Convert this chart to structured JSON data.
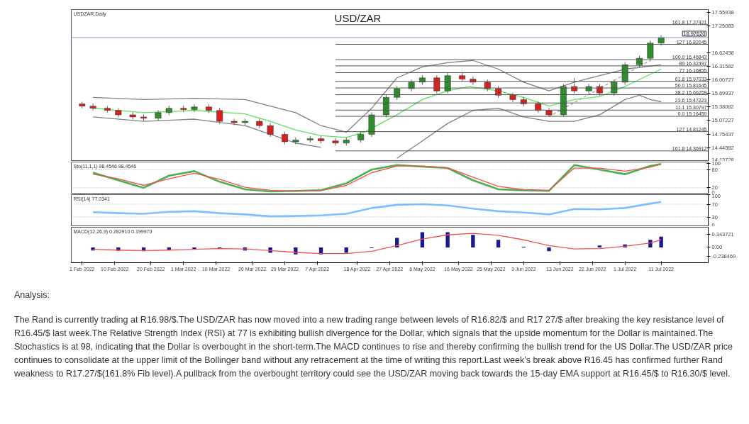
{
  "chart_data": [
    {
      "type": "candlestick",
      "title": "USD/ZAR",
      "subtitle": "USDZAR,Daily",
      "x": [
        "2022-02-01",
        "2022-02-04",
        "2022-02-08",
        "2022-02-11",
        "2022-02-15",
        "2022-02-18",
        "2022-02-22",
        "2022-02-25",
        "2022-03-01",
        "2022-03-04",
        "2022-03-08",
        "2022-03-11",
        "2022-03-15",
        "2022-03-18",
        "2022-03-22",
        "2022-03-25",
        "2022-03-29",
        "2022-04-01",
        "2022-04-05",
        "2022-04-08",
        "2022-04-12",
        "2022-04-15",
        "2022-04-19",
        "2022-04-22",
        "2022-04-26",
        "2022-04-29",
        "2022-05-03",
        "2022-05-06",
        "2022-05-10",
        "2022-05-13",
        "2022-05-17",
        "2022-05-20",
        "2022-05-24",
        "2022-05-27",
        "2022-05-31",
        "2022-06-03",
        "2022-06-07",
        "2022-06-10",
        "2022-06-14",
        "2022-06-17",
        "2022-06-21",
        "2022-06-24",
        "2022-06-28",
        "2022-07-01",
        "2022-07-05",
        "2022-07-08",
        "2022-07-11"
      ],
      "ohlc": [
        [
          15.45,
          15.5,
          15.35,
          15.4
        ],
        [
          15.4,
          15.46,
          15.3,
          15.35
        ],
        [
          15.35,
          15.4,
          15.25,
          15.3
        ],
        [
          15.3,
          15.35,
          15.14,
          15.2
        ],
        [
          15.2,
          15.26,
          15.09,
          15.15
        ],
        [
          15.15,
          15.21,
          15.06,
          15.12
        ],
        [
          15.12,
          15.31,
          15.06,
          15.25
        ],
        [
          15.25,
          15.41,
          15.19,
          15.35
        ],
        [
          15.35,
          15.41,
          15.26,
          15.32
        ],
        [
          15.32,
          15.44,
          15.26,
          15.38
        ],
        [
          15.38,
          15.44,
          15.24,
          15.3
        ],
        [
          15.3,
          15.36,
          14.99,
          15.05
        ],
        [
          15.05,
          15.11,
          14.96,
          15.02
        ],
        [
          15.02,
          15.11,
          14.96,
          15.05
        ],
        [
          15.05,
          15.11,
          14.89,
          14.95
        ],
        [
          14.95,
          15.01,
          14.69,
          14.75
        ],
        [
          14.75,
          14.81,
          14.52,
          14.58
        ],
        [
          14.58,
          14.68,
          14.52,
          14.62
        ],
        [
          14.62,
          14.71,
          14.56,
          14.65
        ],
        [
          14.65,
          14.71,
          14.54,
          14.6
        ],
        [
          14.6,
          14.66,
          14.49,
          14.55
        ],
        [
          14.55,
          14.68,
          14.49,
          14.62
        ],
        [
          14.62,
          14.81,
          14.56,
          14.75
        ],
        [
          14.75,
          15.26,
          14.69,
          15.2
        ],
        [
          15.2,
          15.66,
          15.14,
          15.6
        ],
        [
          15.6,
          15.86,
          15.54,
          15.8
        ],
        [
          15.8,
          16.01,
          15.74,
          15.95
        ],
        [
          15.95,
          16.11,
          15.89,
          16.05
        ],
        [
          16.05,
          16.11,
          15.69,
          15.75
        ],
        [
          15.75,
          16.16,
          15.69,
          16.1
        ],
        [
          16.1,
          16.16,
          15.96,
          16.02
        ],
        [
          16.02,
          16.08,
          15.89,
          15.95
        ],
        [
          15.95,
          16.01,
          15.74,
          15.8
        ],
        [
          15.8,
          15.86,
          15.59,
          15.65
        ],
        [
          15.65,
          15.71,
          15.49,
          15.55
        ],
        [
          15.55,
          15.61,
          15.39,
          15.45
        ],
        [
          15.45,
          15.51,
          15.24,
          15.3
        ],
        [
          15.3,
          15.36,
          15.16,
          15.2
        ],
        [
          15.2,
          15.91,
          15.16,
          15.85
        ],
        [
          15.85,
          16.05,
          15.69,
          15.75
        ],
        [
          15.75,
          15.91,
          15.69,
          15.85
        ],
        [
          15.85,
          15.91,
          15.64,
          15.7
        ],
        [
          15.7,
          16.01,
          15.64,
          15.95
        ],
        [
          15.95,
          16.41,
          15.89,
          16.35
        ],
        [
          16.35,
          16.56,
          16.29,
          16.5
        ],
        [
          16.5,
          16.91,
          16.44,
          16.85
        ],
        [
          16.85,
          17.03,
          16.79,
          16.976
        ]
      ],
      "colors": [
        "#d62020",
        "#d62020",
        "#d62020",
        "#d62020",
        "#d62020",
        "#d62020",
        "#2e8b2e",
        "#2e8b2e",
        "#d62020",
        "#2e8b2e",
        "#d62020",
        "#d62020",
        "#d62020",
        "#2e8b2e",
        "#d62020",
        "#d62020",
        "#d62020",
        "#2e8b2e",
        "#2e8b2e",
        "#d62020",
        "#d62020",
        "#2e8b2e",
        "#2e8b2e",
        "#2e8b2e",
        "#2e8b2e",
        "#2e8b2e",
        "#2e8b2e",
        "#2e8b2e",
        "#d62020",
        "#2e8b2e",
        "#d62020",
        "#d62020",
        "#d62020",
        "#d62020",
        "#d62020",
        "#d62020",
        "#d62020",
        "#d62020",
        "#2e8b2e",
        "#d62020",
        "#2e8b2e",
        "#d62020",
        "#2e8b2e",
        "#2e8b2e",
        "#2e8b2e",
        "#2e8b2e",
        "#2e8b2e"
      ],
      "series": [
        {
          "type": "line",
          "color": "#808080",
          "x": [
            "2022-02-04",
            "2022-02-18",
            "2022-03-04",
            "2022-03-18",
            "2022-03-25",
            "2022-04-01",
            "2022-04-08",
            "2022-04-15",
            "2022-04-22",
            "2022-04-29",
            "2022-05-06",
            "2022-05-13",
            "2022-05-20",
            "2022-05-27",
            "2022-06-03",
            "2022-06-10",
            "2022-06-17",
            "2022-06-24",
            "2022-07-01",
            "2022-07-11"
          ],
          "values": [
            15.6,
            15.55,
            15.58,
            15.55,
            15.4,
            15.25,
            14.95,
            14.8,
            15.35,
            16.05,
            16.3,
            16.4,
            16.45,
            16.25,
            15.95,
            15.75,
            15.95,
            16.1,
            16.25,
            16.35
          ]
        },
        {
          "type": "line",
          "color": "#808080",
          "x": [
            "2022-02-04",
            "2022-02-18",
            "2022-03-04",
            "2022-03-18",
            "2022-03-25",
            "2022-04-01",
            "2022-04-08",
            "2022-04-15",
            "2022-04-22",
            "2022-04-29",
            "2022-05-06",
            "2022-05-13",
            "2022-05-20",
            "2022-05-27",
            "2022-06-03",
            "2022-06-10",
            "2022-06-17",
            "2022-06-24",
            "2022-07-01",
            "2022-07-05",
            "2022-07-08",
            "2022-07-11"
          ],
          "values": [
            15.15,
            15.05,
            15.1,
            14.95,
            14.75,
            14.55,
            14.45,
            null,
            null,
            14.2,
            14.6,
            15.0,
            15.3,
            15.35,
            15.15,
            15.05,
            15.05,
            15.2,
            15.55,
            15.65,
            15.55,
            15.5
          ]
        },
        {
          "type": "line",
          "color": "#5ee05e",
          "x": [
            "2022-02-04",
            "2022-02-18",
            "2022-03-04",
            "2022-03-18",
            "2022-03-25",
            "2022-04-01",
            "2022-04-08",
            "2022-04-15",
            "2022-04-20",
            "2022-04-29",
            "2022-05-06",
            "2022-05-13",
            "2022-05-19",
            "2022-05-27",
            "2022-06-03",
            "2022-06-10",
            "2022-06-17",
            "2022-06-24",
            "2022-07-01",
            "2022-07-11"
          ],
          "values": [
            15.35,
            15.25,
            15.3,
            15.22,
            15.05,
            14.85,
            14.72,
            14.68,
            14.8,
            15.2,
            15.55,
            15.75,
            15.85,
            15.75,
            15.6,
            15.4,
            15.55,
            15.62,
            15.85,
            16.25
          ]
        },
        {
          "type": "line",
          "color": "#a0a0a0",
          "line_style": "dashed",
          "x": [
            "2022-06-10",
            "2022-07-08"
          ],
          "values": [
            15.16,
            16.45
          ]
        }
      ],
      "ylim": [
        14.13,
        17.62
      ],
      "yticks": [
        17.55938,
        17.25083,
        16.62438,
        16.31582,
        16.00727,
        15.69937,
        15.38082,
        15.07227,
        14.75437,
        14.44582,
        14.13728
      ],
      "xlim": [
        "2022-01-29",
        "2022-07-24"
      ],
      "tick_labels": "y",
      "ref_lines": [
        {
          "axis": "y",
          "value": 16.9762,
          "label": "16.97620",
          "color": "#8a9ccf"
        },
        {
          "axis": "y",
          "value": 17.27421,
          "label": "161.8 17.27421",
          "color": "#555555"
        },
        {
          "axis": "y",
          "value": 16.82045,
          "label": "127 16.82045",
          "color": "#555555"
        },
        {
          "axis": "y",
          "value": 16.46843,
          "label": "100.0 16.46843",
          "color": "#555555"
        },
        {
          "axis": "y",
          "value": 16.32497,
          "label": "89 16.32497",
          "color": "#555555"
        },
        {
          "axis": "y",
          "value": 16.16855,
          "label": "77 16.16855",
          "color": "#555555"
        },
        {
          "axis": "y",
          "value": 15.97033,
          "label": "61.8 15.97033",
          "color": "#555555"
        },
        {
          "axis": "y",
          "value": 15.81645,
          "label": "50.0 15.81645",
          "color": "#555555"
        },
        {
          "axis": "y",
          "value": 15.66259,
          "label": "38.2 15.66259",
          "color": "#555555"
        },
        {
          "axis": "y",
          "value": 15.47223,
          "label": "23.6 15.47223",
          "color": "#555555"
        },
        {
          "axis": "y",
          "value": 15.30797,
          "label": "11.1 15.30797",
          "color": "#555555"
        },
        {
          "axis": "y",
          "value": 15.1645,
          "label": "0.0 15.16450",
          "color": "#555555"
        },
        {
          "axis": "y",
          "value": 14.81245,
          "label": "127 14.81245",
          "color": "#555555"
        },
        {
          "axis": "y",
          "value": 14.36912,
          "label": "161.8 14.36912",
          "color": "#555555"
        }
      ],
      "annotations": [
        "Analysis:",
        "The Rand is currently trading at R16.98/$.The USD/ZAR has now moved into a new trading range between levels of R16.82/$ and R17 27/$ after breaking the key resistance level of R16.45/$ last week.The Relative Strength Index (RSI) at 77 is exhibiting bullish divergence for the Dollar, which signals that the upside momentum for the Dollar is maintained.The Stochastics is at 98, indicating that the Dollar is overbought in the short-term.The MACD continues to rise and thereby confirming the bullish trend for the US Dollar.The USD/ZAR price continues to consolidate at the upper limit of the Bollinger band without any retracement at the time of writing this report.Last week’s break above R16.45 has confirmed further Rand weakness to R17.27/$(161.8% Fib level).A pullback from the overbought territory could see the USD/ZAR moving back towards the 15-day EMA support at R16.45/$ to R16.30/$ level."
      ]
    },
    {
      "type": "line",
      "subtitle": "Sto(11,1,1) 98.4546 98.4546",
      "x": [
        "2022-02-04",
        "2022-02-11",
        "2022-02-18",
        "2022-02-25",
        "2022-03-04",
        "2022-03-11",
        "2022-03-18",
        "2022-03-25",
        "2022-04-01",
        "2022-04-08",
        "2022-04-15",
        "2022-04-22",
        "2022-04-29",
        "2022-05-06",
        "2022-05-13",
        "2022-05-20",
        "2022-05-27",
        "2022-06-03",
        "2022-06-10",
        "2022-06-17",
        "2022-06-24",
        "2022-07-01",
        "2022-07-08",
        "2022-07-11"
      ],
      "series": [
        {
          "color": "#4caf50",
          "values": [
            70,
            45,
            20,
            60,
            75,
            40,
            15,
            8,
            10,
            12,
            35,
            80,
            95,
            90,
            85,
            45,
            15,
            12,
            10,
            95,
            80,
            65,
            92,
            98.4546
          ]
        },
        {
          "color": "#f05050",
          "values": [
            65,
            50,
            28,
            50,
            68,
            48,
            22,
            12,
            9,
            11,
            28,
            70,
            92,
            92,
            86,
            55,
            25,
            14,
            12,
            85,
            85,
            75,
            88,
            98.4546
          ]
        }
      ],
      "ylim": [
        0,
        105
      ],
      "yticks": [
        100,
        80,
        20,
        0
      ],
      "xlim": [
        "2022-01-29",
        "2022-07-24"
      ],
      "tick_labels": "y",
      "ref_lines": [
        {
          "axis": "y",
          "value": 80,
          "color": "#aaaaaa",
          "line_style": "dotted"
        },
        {
          "axis": "y",
          "value": 20,
          "color": "#aaaaaa",
          "line_style": "dotted"
        }
      ]
    },
    {
      "type": "line",
      "subtitle": "RSI(14) 77.0341",
      "x": [
        "2022-02-04",
        "2022-02-11",
        "2022-02-18",
        "2022-02-25",
        "2022-03-04",
        "2022-03-11",
        "2022-03-18",
        "2022-03-25",
        "2022-04-01",
        "2022-04-08",
        "2022-04-15",
        "2022-04-22",
        "2022-04-29",
        "2022-05-06",
        "2022-05-13",
        "2022-05-20",
        "2022-05-27",
        "2022-06-03",
        "2022-06-10",
        "2022-06-17",
        "2022-06-24",
        "2022-07-01",
        "2022-07-08",
        "2022-07-11"
      ],
      "series": [
        {
          "color": "#7fbfff",
          "values": [
            45,
            42,
            40,
            46,
            48,
            42,
            38,
            32,
            33,
            35,
            40,
            58,
            68,
            70,
            66,
            56,
            48,
            44,
            38,
            55,
            54,
            58,
            72,
            77.0341
          ]
        }
      ],
      "ylim": [
        0,
        100
      ],
      "yticks": [
        100,
        70,
        30,
        0
      ],
      "xlim": [
        "2022-01-29",
        "2022-07-24"
      ],
      "tick_labels": "y",
      "ref_lines": [
        {
          "axis": "y",
          "value": 70,
          "color": "#aaaaaa",
          "line_style": "dotted"
        },
        {
          "axis": "y",
          "value": 30,
          "color": "#aaaaaa",
          "line_style": "dotted"
        }
      ]
    },
    {
      "type": "bar",
      "subtitle": "MACD(12,26,9) 0.282910 0.199970",
      "x": [
        "2022-02-04",
        "2022-02-11",
        "2022-02-18",
        "2022-02-25",
        "2022-03-04",
        "2022-03-11",
        "2022-03-18",
        "2022-03-25",
        "2022-04-01",
        "2022-04-08",
        "2022-04-15",
        "2022-04-22",
        "2022-04-29",
        "2022-05-06",
        "2022-05-13",
        "2022-05-20",
        "2022-05-27",
        "2022-06-03",
        "2022-06-10",
        "2022-06-17",
        "2022-06-24",
        "2022-07-01",
        "2022-07-08",
        "2022-07-11"
      ],
      "series": [
        {
          "type": "bar",
          "color": "#1a1a8c",
          "values": [
            -0.08,
            -0.09,
            -0.1,
            -0.07,
            -0.04,
            -0.03,
            -0.08,
            -0.14,
            -0.18,
            -0.18,
            -0.14,
            -0.02,
            0.25,
            0.4,
            0.4,
            0.33,
            0.2,
            0.02,
            -0.1,
            0.0,
            0.05,
            0.08,
            0.2,
            0.28291
          ]
        },
        {
          "type": "line",
          "color": "#f05050",
          "values": [
            -0.05,
            -0.07,
            -0.08,
            -0.07,
            -0.05,
            -0.03,
            -0.04,
            -0.08,
            -0.13,
            -0.16,
            -0.16,
            -0.1,
            0.05,
            0.22,
            0.33,
            0.37,
            0.32,
            0.2,
            0.05,
            -0.04,
            -0.03,
            0.03,
            0.12,
            0.19997
          ]
        }
      ],
      "ylim": [
        -0.4,
        0.53
      ],
      "yticks": [
        {
          "value": 0.343721,
          "label": "0.343721"
        },
        {
          "value": 0,
          "label": "0.00"
        },
        {
          "value": -0.238469,
          "label": "-0.238469"
        }
      ],
      "xlim": [
        "2022-01-29",
        "2022-07-24"
      ],
      "xticks": [
        {
          "value": "2022-02-01",
          "label": "1 Feb 2022"
        },
        {
          "value": "2022-02-10",
          "label": "10 Feb 2022"
        },
        {
          "value": "2022-02-20",
          "label": "20 Feb 2022"
        },
        {
          "value": "2022-03-01",
          "label": "1 Mar 2022"
        },
        {
          "value": "2022-03-10",
          "label": "10 Mar 2022"
        },
        {
          "value": "2022-03-20",
          "label": "20 Mar 2022"
        },
        {
          "value": "2022-03-29",
          "label": "29 Mar 2022"
        },
        {
          "value": "2022-04-07",
          "label": "7 Apr 2022"
        },
        {
          "value": "2022-04-18",
          "label": "18 Apr 2022"
        },
        {
          "value": "2022-04-27",
          "label": "27 Apr 2022"
        },
        {
          "value": "2022-05-06",
          "label": "6 May 2022"
        },
        {
          "value": "2022-05-16",
          "label": "16 May 2022"
        },
        {
          "value": "2022-05-25",
          "label": "25 May 2022"
        },
        {
          "value": "2022-06-03",
          "label": "3 Jun 2022"
        },
        {
          "value": "2022-06-13",
          "label": "13 Jun 2022"
        },
        {
          "value": "2022-06-22",
          "label": "22 Jun 2022"
        },
        {
          "value": "2022-07-01",
          "label": "1 Jul 2022"
        },
        {
          "value": "2022-07-11",
          "label": "11 Jul 2022"
        }
      ]
    }
  ]
}
